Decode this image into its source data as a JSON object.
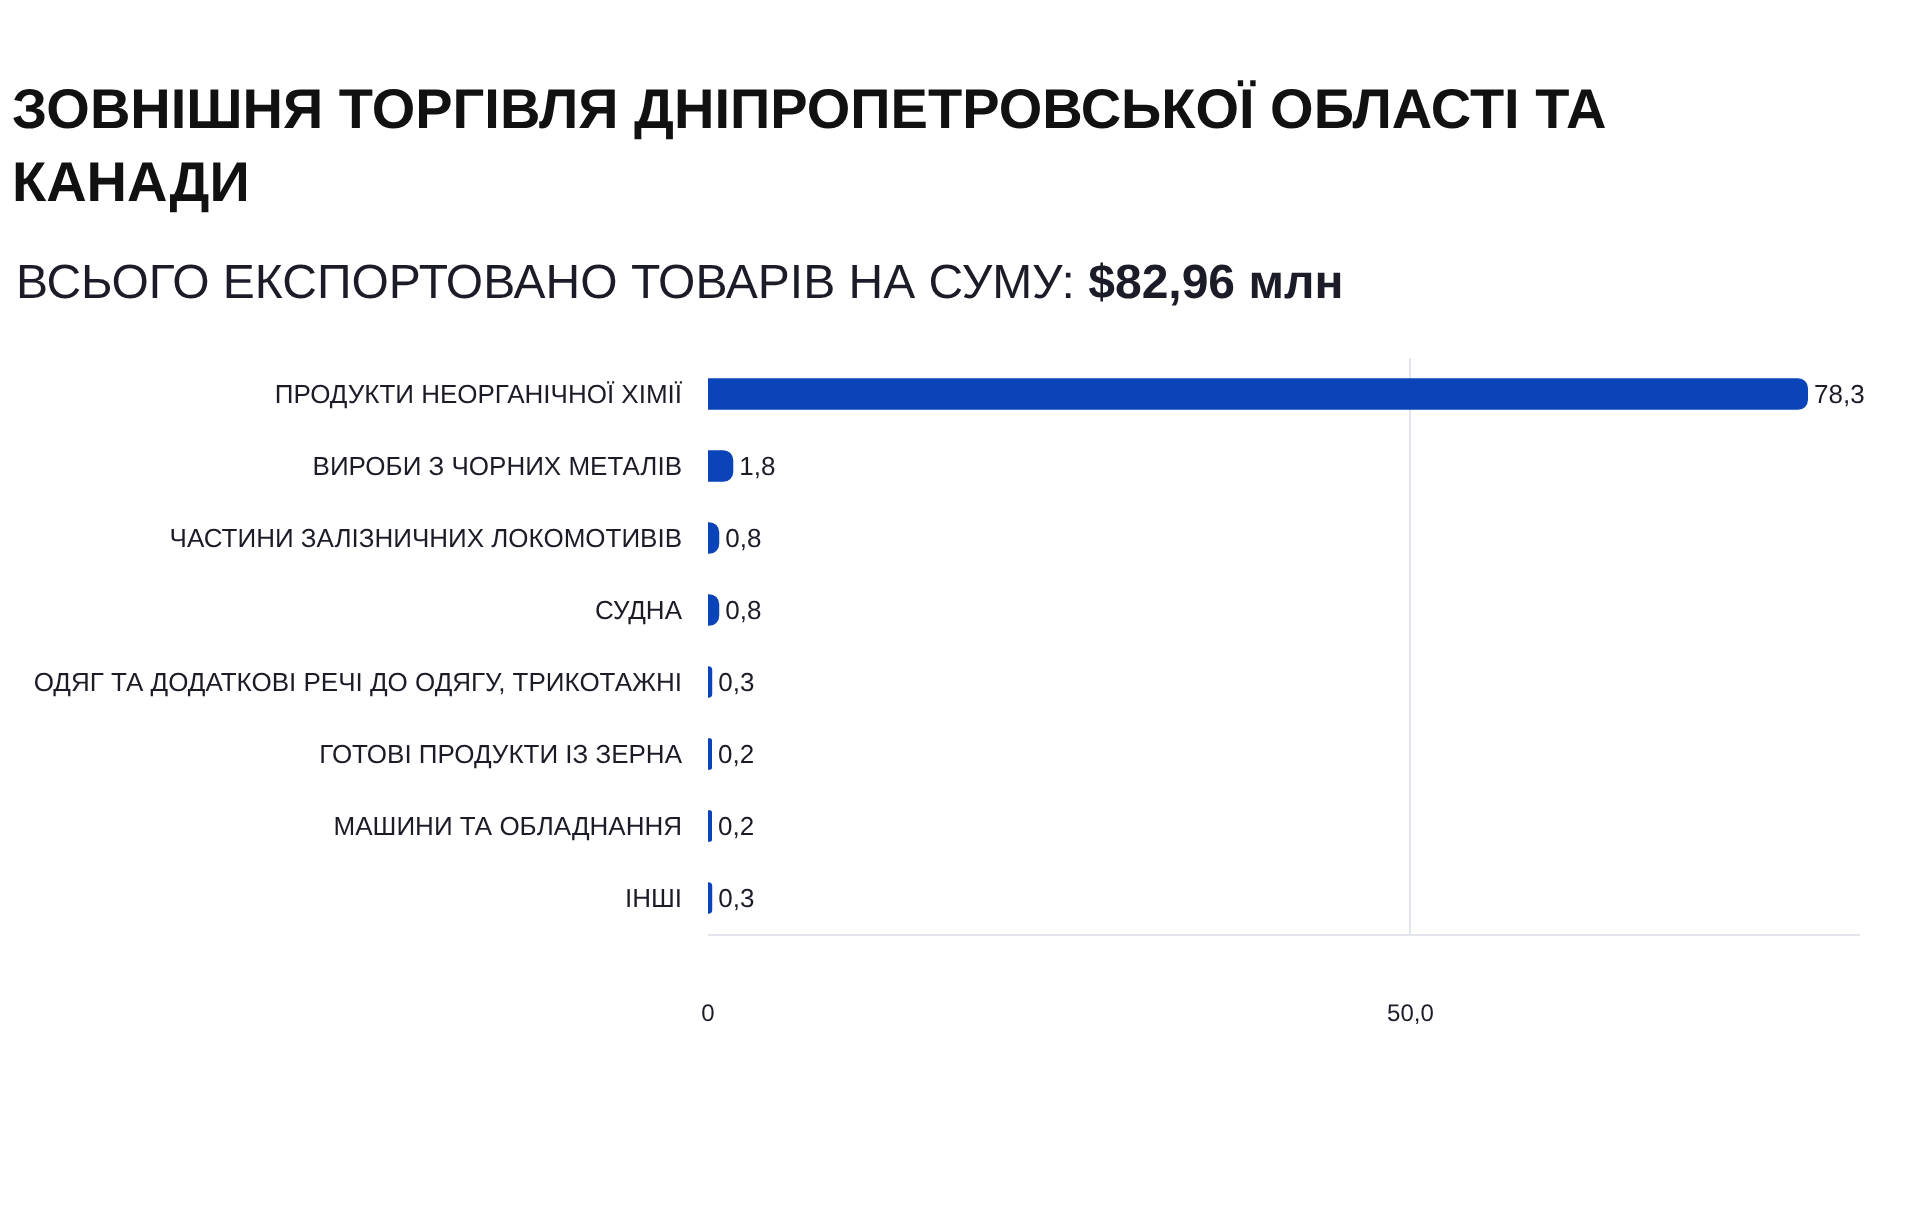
{
  "chart_data": {
    "type": "bar",
    "orientation": "horizontal",
    "title": "ЗОВНІШНЯ ТОРГІВЛЯ ДНІПРОПЕТРОВСЬКОЇ ОБЛАСТІ ТА КАНАДИ",
    "subtitle": "ВСЬОГО ЕКСПОРТОВАНО ТОВАРІВ НА СУМУ: $82,96 млн",
    "categories": [
      "ПРОДУКТИ НЕОРГАНІЧНОЇ ХІМІЇ",
      "ВИРОБИ З ЧОРНИХ МЕТАЛІВ",
      "ЧАСТИНИ ЗАЛІЗНИЧНИХ ЛОКОМОТИВІВ",
      "СУДНА",
      "ОДЯГ ТА ДОДАТКОВІ РЕЧІ ДО ОДЯГУ, ТРИКОТАЖНІ",
      "ГОТОВІ ПРОДУКТИ ІЗ ЗЕРНА",
      "МАШИНИ ТА ОБЛАДНАННЯ",
      "ІНШІ"
    ],
    "values": [
      78.3,
      1.8,
      0.8,
      0.8,
      0.3,
      0.2,
      0.2,
      0.3
    ],
    "value_labels": [
      "78,3",
      "1,8",
      "0,8",
      "0,8",
      "0,3",
      "0,2",
      "0,2",
      "0,3"
    ],
    "color": "#0a44b8",
    "xlim": [
      0,
      82
    ],
    "xticks": [
      0,
      {
        "value": 50,
        "label": "50,0"
      }
    ],
    "grid": "x"
  }
}
